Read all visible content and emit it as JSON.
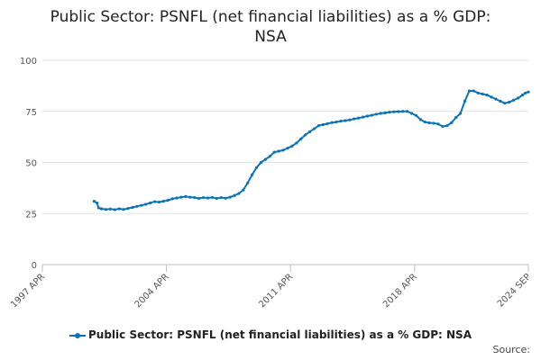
{
  "title_line1": "Public Sector: PSNFL (net financial liabilities) as a % GDP:",
  "title_line2": "NSA",
  "legend_label": "Public Sector: PSNFL (net financial liabilities) as a % GDP: NSA",
  "credits": "Source:",
  "series_color": "#0c74b6",
  "chart_data": {
    "type": "line",
    "title": "Public Sector: PSNFL (net financial liabilities) as a % GDP: NSA",
    "xlabel": "",
    "ylabel": "",
    "xlim": [
      "1997-04",
      "2024-09"
    ],
    "ylim": [
      0,
      100
    ],
    "y_ticks": [
      0,
      25,
      50,
      75,
      100
    ],
    "x_tick_labels": [
      "1997 APR",
      "2004 APR",
      "2011 APR",
      "2018 APR",
      "2024 SEP"
    ],
    "grid": "horizontal",
    "legend_position": "bottom",
    "series": [
      {
        "name": "Public Sector: PSNFL (net financial liabilities) as a % GDP: NSA",
        "points": [
          [
            "2000-03",
            31.0
          ],
          [
            "2000-05",
            30.2
          ],
          [
            "2000-06",
            27.8
          ],
          [
            "2000-08",
            27.3
          ],
          [
            "2000-11",
            27.0
          ],
          [
            "2001-02",
            27.2
          ],
          [
            "2001-05",
            26.9
          ],
          [
            "2001-08",
            27.3
          ],
          [
            "2001-11",
            27.0
          ],
          [
            "2002-02",
            27.5
          ],
          [
            "2002-05",
            28.0
          ],
          [
            "2002-08",
            28.5
          ],
          [
            "2002-11",
            29.0
          ],
          [
            "2003-02",
            29.5
          ],
          [
            "2003-05",
            30.2
          ],
          [
            "2003-08",
            30.8
          ],
          [
            "2003-11",
            30.6
          ],
          [
            "2004-02",
            31.0
          ],
          [
            "2004-05",
            31.5
          ],
          [
            "2004-08",
            32.2
          ],
          [
            "2004-11",
            32.6
          ],
          [
            "2005-02",
            33.0
          ],
          [
            "2005-05",
            33.3
          ],
          [
            "2005-08",
            33.0
          ],
          [
            "2005-11",
            32.8
          ],
          [
            "2006-02",
            32.4
          ],
          [
            "2006-05",
            32.8
          ],
          [
            "2006-08",
            32.6
          ],
          [
            "2006-11",
            32.9
          ],
          [
            "2007-02",
            32.4
          ],
          [
            "2007-05",
            32.8
          ],
          [
            "2007-08",
            32.5
          ],
          [
            "2007-11",
            33.0
          ],
          [
            "2008-02",
            33.8
          ],
          [
            "2008-05",
            34.8
          ],
          [
            "2008-08",
            36.5
          ],
          [
            "2008-11",
            40.0
          ],
          [
            "2009-02",
            44.0
          ],
          [
            "2009-05",
            47.5
          ],
          [
            "2009-08",
            50.0
          ],
          [
            "2009-11",
            51.5
          ],
          [
            "2010-02",
            53.0
          ],
          [
            "2010-05",
            55.0
          ],
          [
            "2010-08",
            55.5
          ],
          [
            "2010-11",
            56.0
          ],
          [
            "2011-02",
            57.0
          ],
          [
            "2011-05",
            58.0
          ],
          [
            "2011-08",
            59.5
          ],
          [
            "2011-11",
            61.5
          ],
          [
            "2012-02",
            63.5
          ],
          [
            "2012-05",
            65.0
          ],
          [
            "2012-08",
            66.5
          ],
          [
            "2012-11",
            68.0
          ],
          [
            "2013-02",
            68.5
          ],
          [
            "2013-05",
            69.0
          ],
          [
            "2013-08",
            69.5
          ],
          [
            "2013-11",
            69.8
          ],
          [
            "2014-02",
            70.2
          ],
          [
            "2014-05",
            70.5
          ],
          [
            "2014-08",
            70.8
          ],
          [
            "2014-11",
            71.3
          ],
          [
            "2015-02",
            71.7
          ],
          [
            "2015-05",
            72.2
          ],
          [
            "2015-08",
            72.7
          ],
          [
            "2015-11",
            73.1
          ],
          [
            "2016-02",
            73.6
          ],
          [
            "2016-05",
            74.0
          ],
          [
            "2016-08",
            74.3
          ],
          [
            "2016-11",
            74.6
          ],
          [
            "2017-02",
            74.8
          ],
          [
            "2017-05",
            74.9
          ],
          [
            "2017-08",
            75.0
          ],
          [
            "2017-11",
            75.0
          ],
          [
            "2018-02",
            74.0
          ],
          [
            "2018-05",
            73.0
          ],
          [
            "2018-08",
            71.0
          ],
          [
            "2018-11",
            69.8
          ],
          [
            "2019-02",
            69.4
          ],
          [
            "2019-05",
            69.2
          ],
          [
            "2019-08",
            68.8
          ],
          [
            "2019-11",
            67.6
          ],
          [
            "2020-02",
            68.0
          ],
          [
            "2020-05",
            69.5
          ],
          [
            "2020-08",
            72.0
          ],
          [
            "2020-11",
            74.0
          ],
          [
            "2021-02",
            80.0
          ],
          [
            "2021-05",
            85.0
          ],
          [
            "2021-08",
            85.0
          ],
          [
            "2021-11",
            84.0
          ],
          [
            "2022-02",
            83.5
          ],
          [
            "2022-05",
            83.0
          ],
          [
            "2022-08",
            82.0
          ],
          [
            "2022-11",
            81.0
          ],
          [
            "2023-02",
            80.0
          ],
          [
            "2023-05",
            79.0
          ],
          [
            "2023-08",
            79.5
          ],
          [
            "2023-11",
            80.5
          ],
          [
            "2024-02",
            81.5
          ],
          [
            "2024-05",
            83.0
          ],
          [
            "2024-07",
            84.0
          ],
          [
            "2024-09",
            84.5
          ]
        ]
      }
    ]
  }
}
